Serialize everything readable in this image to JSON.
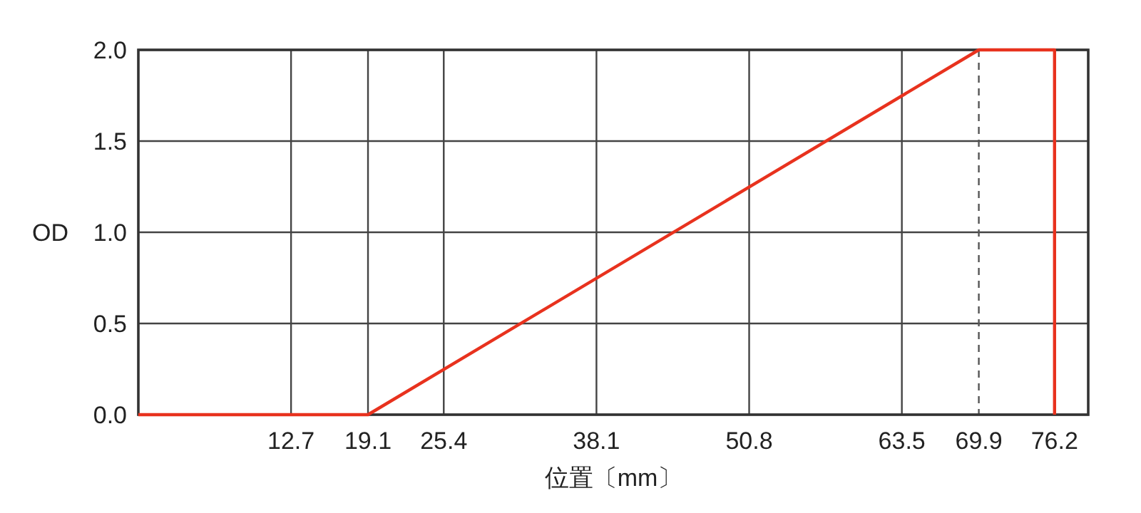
{
  "chart_data": {
    "type": "line",
    "xlabel": "位置〔mm〕",
    "ylabel": "OD",
    "x": [
      0,
      19.1,
      69.9,
      76.2,
      76.2
    ],
    "series": [
      {
        "color": "#e8321e",
        "values": [
          0,
          0,
          2.0,
          2.0,
          0
        ]
      }
    ],
    "xlim": [
      0,
      79
    ],
    "xticks": [
      12.7,
      19.1,
      25.4,
      38.1,
      50.8,
      63.5,
      69.9,
      76.2
    ],
    "ylim": [
      0,
      2.0
    ],
    "yticks": [
      {
        "value": 0,
        "label": "0.0"
      },
      {
        "value": 0.5,
        "label": "0.5"
      },
      {
        "value": 1.0,
        "label": "1.0"
      },
      {
        "value": 1.5,
        "label": "1.5"
      },
      {
        "value": 2.0,
        "label": "2.0"
      }
    ],
    "grid": true,
    "marker": "none",
    "line_style": "solid",
    "ref_lines": [
      {
        "axis": "x",
        "value": 69.9,
        "line_style": "dashed",
        "color": "#555555"
      }
    ]
  }
}
